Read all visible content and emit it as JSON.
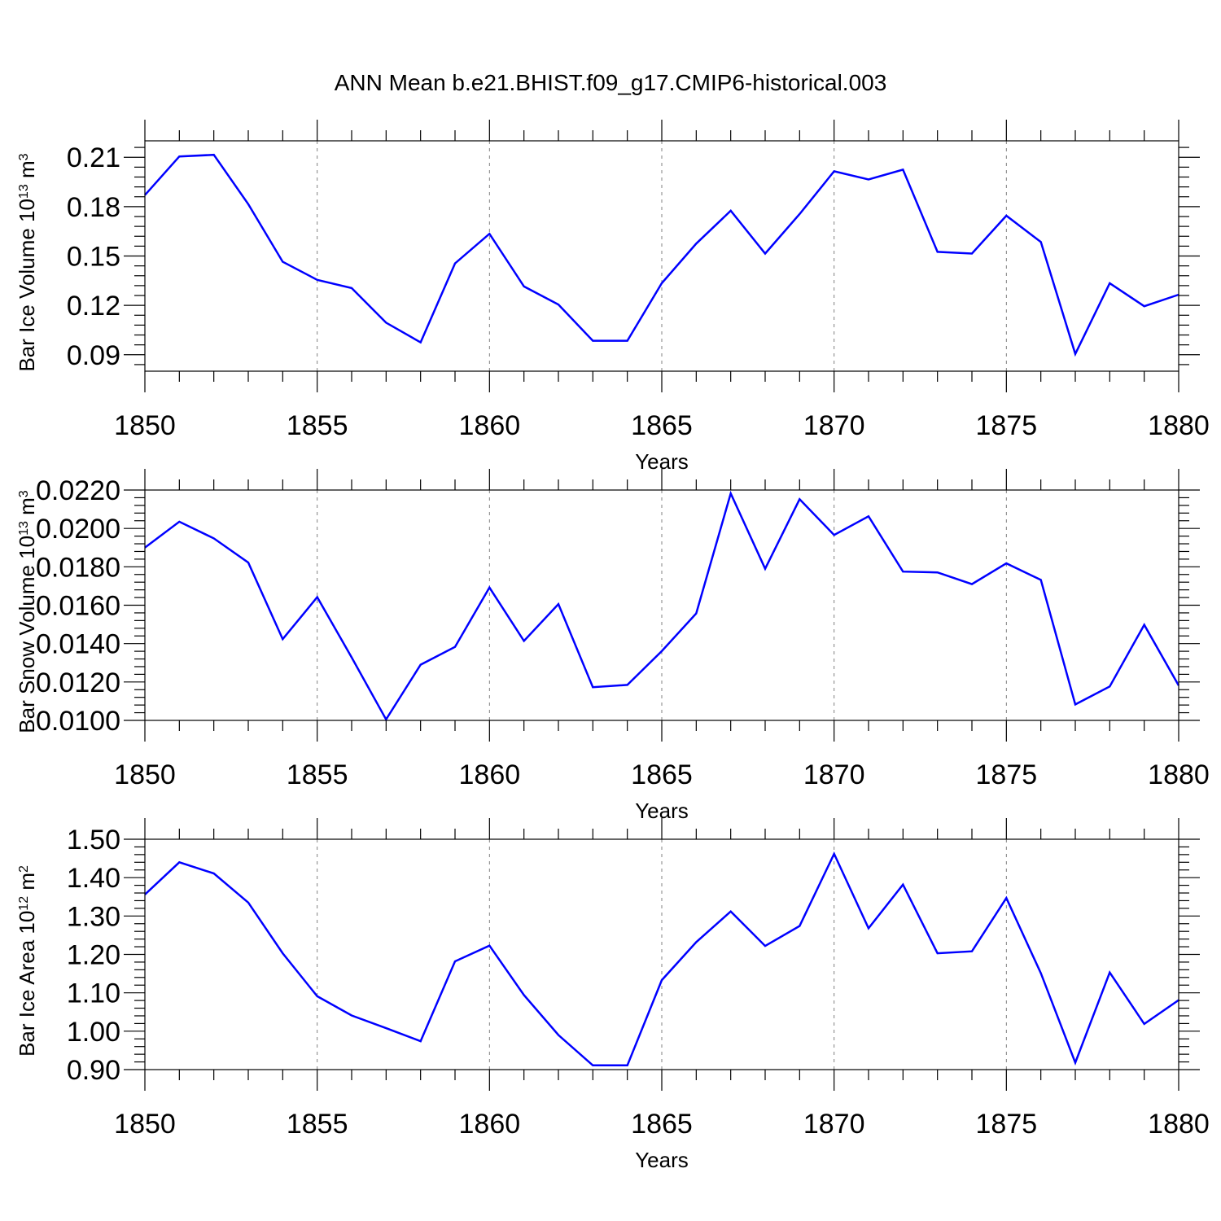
{
  "title": "ANN Mean b.e21.BHIST.f09_g17.CMIP6-historical.003",
  "colors": {
    "series": "#0000ff",
    "axis": "#000000",
    "grid": "#808080"
  },
  "chart_data": [
    {
      "type": "line",
      "ylabel_main": "Bar Ice Volume 10",
      "ylabel_exp": "13",
      "ylabel_unit": " m",
      "ylabel_unit_exp": "3",
      "xlabel": "Years",
      "xlim": [
        1850,
        1880
      ],
      "ylim": [
        0.08,
        0.22
      ],
      "yticks": [
        0.09,
        0.12,
        0.15,
        0.18,
        0.21
      ],
      "ytick_labels": [
        "0.09",
        "0.12",
        "0.15",
        "0.18",
        "0.21"
      ],
      "xticks": [
        1850,
        1855,
        1860,
        1865,
        1870,
        1875,
        1880
      ],
      "xtick_labels": [
        "1850",
        "1855",
        "1860",
        "1865",
        "1870",
        "1875",
        "1880"
      ],
      "grid": "x-dashed",
      "x": [
        1850,
        1851,
        1852,
        1853,
        1854,
        1855,
        1856,
        1857,
        1858,
        1859,
        1860,
        1861,
        1862,
        1863,
        1864,
        1865,
        1866,
        1867,
        1868,
        1869,
        1870,
        1871,
        1872,
        1873,
        1874,
        1875,
        1876,
        1877,
        1878,
        1879,
        1880
      ],
      "values": [
        0.187,
        0.2105,
        0.2115,
        0.1815,
        0.1465,
        0.1355,
        0.1305,
        0.1095,
        0.0975,
        0.1455,
        0.1635,
        0.1315,
        0.1205,
        0.0985,
        0.0985,
        0.1335,
        0.1575,
        0.1775,
        0.1515,
        0.1755,
        0.2015,
        0.1965,
        0.2025,
        0.1525,
        0.1515,
        0.1745,
        0.1585,
        0.0905,
        0.1335,
        0.1195,
        0.1265
      ]
    },
    {
      "type": "line",
      "ylabel_main": "Bar Snow Volume 10",
      "ylabel_exp": "13",
      "ylabel_unit": " m",
      "ylabel_unit_exp": "3",
      "xlabel": "Years",
      "xlim": [
        1850,
        1880
      ],
      "ylim": [
        0.01,
        0.022
      ],
      "yticks": [
        0.01,
        0.012,
        0.014,
        0.016,
        0.018,
        0.02,
        0.022
      ],
      "ytick_labels": [
        "0.0100",
        "0.0120",
        "0.0140",
        "0.0160",
        "0.0180",
        "0.0200",
        "0.0220"
      ],
      "xticks": [
        1850,
        1855,
        1860,
        1865,
        1870,
        1875,
        1880
      ],
      "xtick_labels": [
        "1850",
        "1855",
        "1860",
        "1865",
        "1870",
        "1875",
        "1880"
      ],
      "grid": "x-dashed",
      "x": [
        1850,
        1851,
        1852,
        1853,
        1854,
        1855,
        1856,
        1857,
        1858,
        1859,
        1860,
        1861,
        1862,
        1863,
        1864,
        1865,
        1866,
        1867,
        1868,
        1869,
        1870,
        1871,
        1872,
        1873,
        1874,
        1875,
        1876,
        1877,
        1878,
        1879,
        1880
      ],
      "values": [
        0.019,
        0.02035,
        0.01948,
        0.01822,
        0.01423,
        0.01642,
        0.01328,
        0.01005,
        0.0129,
        0.01383,
        0.01692,
        0.01414,
        0.01606,
        0.01173,
        0.01185,
        0.01361,
        0.01557,
        0.02182,
        0.0179,
        0.02152,
        0.01966,
        0.02063,
        0.01775,
        0.01771,
        0.0171,
        0.01818,
        0.01732,
        0.01083,
        0.01177,
        0.01498,
        0.01182
      ]
    },
    {
      "type": "line",
      "ylabel_main": "Bar Ice Area 10",
      "ylabel_exp": "12",
      "ylabel_unit": " m",
      "ylabel_unit_exp": "2",
      "xlabel": "Years",
      "xlim": [
        1850,
        1880
      ],
      "ylim": [
        0.9,
        1.5
      ],
      "yticks": [
        0.9,
        1.0,
        1.1,
        1.2,
        1.3,
        1.4,
        1.5
      ],
      "ytick_labels": [
        "0.90",
        "1.00",
        "1.10",
        "1.20",
        "1.30",
        "1.40",
        "1.50"
      ],
      "xticks": [
        1850,
        1855,
        1860,
        1865,
        1870,
        1875,
        1880
      ],
      "xtick_labels": [
        "1850",
        "1855",
        "1860",
        "1865",
        "1870",
        "1875",
        "1880"
      ],
      "grid": "x-dashed",
      "x": [
        1850,
        1851,
        1852,
        1853,
        1854,
        1855,
        1856,
        1857,
        1858,
        1859,
        1860,
        1861,
        1862,
        1863,
        1864,
        1865,
        1866,
        1867,
        1868,
        1869,
        1870,
        1871,
        1872,
        1873,
        1874,
        1875,
        1876,
        1877,
        1878,
        1879,
        1880
      ],
      "values": [
        1.356,
        1.44,
        1.411,
        1.335,
        1.203,
        1.091,
        1.041,
        1.008,
        0.974,
        1.182,
        1.223,
        1.094,
        0.99,
        0.911,
        0.911,
        1.133,
        1.232,
        1.312,
        1.222,
        1.274,
        1.462,
        1.268,
        1.382,
        1.203,
        1.208,
        1.347,
        1.151,
        0.918,
        1.153,
        1.019,
        1.081
      ]
    }
  ]
}
